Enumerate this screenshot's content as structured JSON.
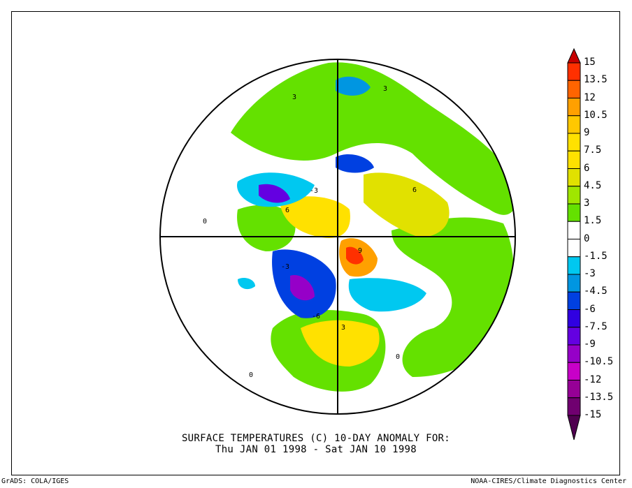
{
  "title": {
    "line1": "SURFACE TEMPERATURES (C)   10-DAY ANOMALY FOR:",
    "line2": "Thu JAN 01 1998 - Sat JAN 10 1998"
  },
  "footer": {
    "left": "GrADS: COLA/IGES",
    "right": "NOAA-CIRES/Climate Diagnostics Center"
  },
  "colorbar": {
    "labels": [
      "15",
      "13.5",
      "12",
      "10.5",
      "9",
      "7.5",
      "6",
      "4.5",
      "3",
      "1.5",
      "0",
      "-1.5",
      "-3",
      "-4.5",
      "-6",
      "-7.5",
      "-9",
      "-10.5",
      "-12",
      "-13.5",
      "-15"
    ],
    "top_arrow_color": "#c80000",
    "bottom_arrow_color": "#500050",
    "colors": [
      "#ff3000",
      "#ff6400",
      "#ffa000",
      "#ffc800",
      "#ffe100",
      "#ffe100",
      "#e1e100",
      "#a0e600",
      "#64e100",
      "#ffffff",
      "#ffffff",
      "#00c8f0",
      "#0096e1",
      "#0040e1",
      "#3000e1",
      "#6400e1",
      "#9600c8",
      "#c800c8",
      "#960096",
      "#700070"
    ]
  },
  "map": {
    "contour_labels": [
      "3",
      "0",
      "-3",
      "6",
      "-6",
      "9",
      "3",
      "0",
      "-3",
      "6",
      "3",
      "0"
    ]
  }
}
